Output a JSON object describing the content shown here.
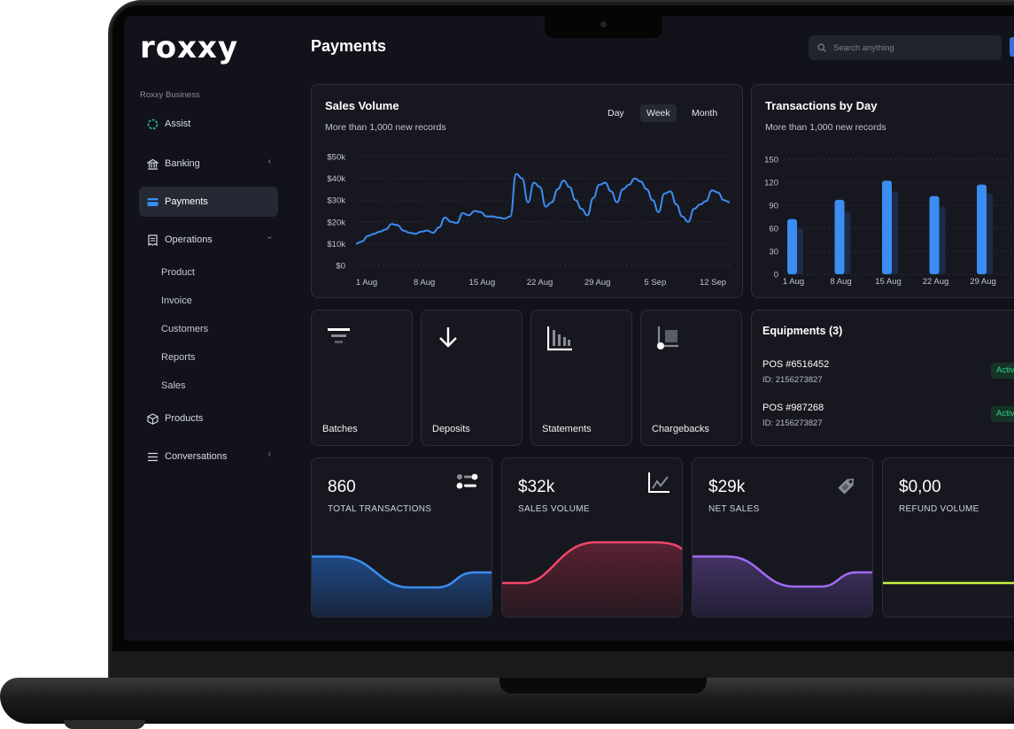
{
  "app": {
    "logo": "roxxy",
    "business": "Roxxy Business",
    "page_title": "Payments"
  },
  "search": {
    "placeholder": "Search anything"
  },
  "sidebar": {
    "items": [
      {
        "label": "Assist"
      },
      {
        "label": "Banking"
      },
      {
        "label": "Payments"
      },
      {
        "label": "Operations"
      },
      {
        "label": "Products"
      },
      {
        "label": "Conversations"
      }
    ],
    "operations_children": [
      "Product",
      "Invoice",
      "Customers",
      "Reports",
      "Sales"
    ]
  },
  "sales_volume": {
    "title": "Sales Volume",
    "subtitle": "More than 1,000 new records",
    "toggles": [
      "Day",
      "Week",
      "Month"
    ],
    "active_toggle": "Week",
    "chart_data": {
      "type": "line",
      "y_ticks": [
        "$50k",
        "$40k",
        "$30k",
        "$20k",
        "$10k",
        "$0"
      ],
      "x_ticks": [
        "1 Aug",
        "8 Aug",
        "15 Aug",
        "22 Aug",
        "29 Aug",
        "5 Sep",
        "12 Sep"
      ],
      "ylim": [
        0,
        50000
      ],
      "color": "#3b8df2",
      "values": [
        10000,
        11000,
        13500,
        14500,
        15500,
        16500,
        19000,
        18500,
        16000,
        15000,
        14500,
        15500,
        16000,
        15000,
        17500,
        22000,
        20000,
        19500,
        24000,
        23000,
        25000,
        24500,
        22500,
        22500,
        22000,
        21500,
        22500,
        42000,
        40000,
        29000,
        38000,
        36000,
        27000,
        29000,
        35000,
        39000,
        36000,
        30000,
        26000,
        23000,
        31000,
        37000,
        38000,
        34000,
        29000,
        35000,
        37000,
        40000,
        38500,
        35000,
        30000,
        24500,
        33000,
        34000,
        28000,
        22500,
        20000,
        26000,
        28000,
        29500,
        34500,
        33500,
        30000,
        29000
      ]
    }
  },
  "transactions_by_day": {
    "title": "Transactions by Day",
    "subtitle": "More than 1,000 new records",
    "chart_data": {
      "type": "bar",
      "y_ticks": [
        "150",
        "120",
        "90",
        "60",
        "30",
        "0"
      ],
      "categories": [
        "1 Aug",
        "8 Aug",
        "15 Aug",
        "22 Aug",
        "29 Aug"
      ],
      "ylim": [
        0,
        150
      ],
      "series": [
        {
          "values": [
            72,
            97,
            122,
            102,
            117
          ],
          "color": "#3b8df2"
        },
        {
          "values": [
            60,
            82,
            108,
            88,
            105
          ],
          "color": "#1c2b47"
        }
      ]
    }
  },
  "tiles": [
    {
      "label": "Batches",
      "icon": "filter-icon"
    },
    {
      "label": "Deposits",
      "icon": "arrow-down-icon"
    },
    {
      "label": "Statements",
      "icon": "bar-chart-icon"
    },
    {
      "label": "Chargebacks",
      "icon": "dolly-icon"
    }
  ],
  "equipments": {
    "title": "Equipments (3)",
    "items": [
      {
        "name": "POS #6516452",
        "id": "ID: 2156273827",
        "status": "Active"
      },
      {
        "name": "POS  #987268",
        "id": "ID: 2156273827",
        "status": "Active"
      }
    ]
  },
  "stats": [
    {
      "value": "860",
      "label": "TOTAL TRANSACTIONS",
      "icon": "toggle-icon",
      "color": "#3b8df2",
      "fill": "#1f3f6e"
    },
    {
      "value": "$32k",
      "label": "SALES VOLUME",
      "icon": "line-chart-icon",
      "color": "#f0476b",
      "fill": "#4a1f2d"
    },
    {
      "value": "$29k",
      "label": "NET SALES",
      "icon": "tag-icon",
      "color": "#a26bf5",
      "fill": "#3a2a5c"
    },
    {
      "value": "$0,00",
      "label": "REFUND VOLUME",
      "icon": "none",
      "color": "#c8f03c",
      "fill": "#17181f"
    }
  ]
}
